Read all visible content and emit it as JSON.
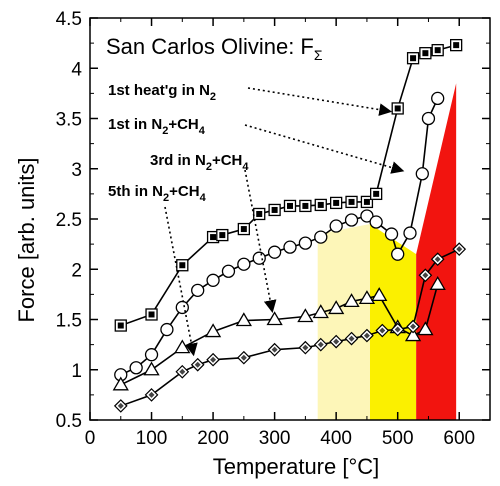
{
  "chart_data": {
    "type": "line",
    "title": "San Carlos Olivine: F",
    "title_subscript": "Σ",
    "xlabel": "Temperature [°C]",
    "ylabel": "Force [arb. units]",
    "xlim": [
      0,
      650
    ],
    "ylim": [
      0.5,
      4.5
    ],
    "xticks": [
      0,
      100,
      200,
      300,
      400,
      500,
      600
    ],
    "yticks": [
      0.5,
      1,
      1.5,
      2,
      2.5,
      3,
      3.5,
      4,
      4.5
    ],
    "grid": false,
    "series": [
      {
        "name": "1st heat'g in N₂",
        "marker": "square",
        "x": [
          50,
          100,
          150,
          200,
          215,
          250,
          275,
          300,
          325,
          350,
          375,
          400,
          425,
          450,
          465,
          500,
          525,
          545,
          565,
          595
        ],
        "y": [
          1.44,
          1.55,
          2.04,
          2.32,
          2.34,
          2.4,
          2.55,
          2.59,
          2.63,
          2.63,
          2.64,
          2.66,
          2.67,
          2.67,
          2.75,
          3.6,
          4.1,
          4.15,
          4.18,
          4.23
        ]
      },
      {
        "name": "1st in N₂+CH₄",
        "marker": "circle",
        "x": [
          50,
          75,
          100,
          125,
          150,
          175,
          200,
          225,
          250,
          275,
          300,
          325,
          350,
          375,
          400,
          425,
          450,
          465,
          490,
          500,
          520,
          540,
          550,
          565
        ],
        "y": [
          0.95,
          1.02,
          1.15,
          1.4,
          1.62,
          1.79,
          1.89,
          1.98,
          2.05,
          2.11,
          2.17,
          2.22,
          2.26,
          2.32,
          2.43,
          2.49,
          2.53,
          2.47,
          2.35,
          2.15,
          2.36,
          2.95,
          3.5,
          3.7
        ]
      },
      {
        "name": "3rd in N₂+CH₄",
        "marker": "triangle",
        "x": [
          50,
          100,
          150,
          200,
          250,
          300,
          350,
          375,
          400,
          425,
          450,
          470,
          500,
          525,
          545,
          565
        ],
        "y": [
          0.85,
          1.0,
          1.22,
          1.38,
          1.49,
          1.5,
          1.53,
          1.57,
          1.61,
          1.68,
          1.71,
          1.74,
          1.42,
          1.34,
          1.4,
          1.85
        ]
      },
      {
        "name": "5th in N₂+CH₄",
        "marker": "diamond",
        "x": [
          50,
          100,
          150,
          175,
          200,
          250,
          300,
          350,
          375,
          400,
          425,
          450,
          475,
          500,
          525,
          545,
          565,
          600
        ],
        "y": [
          0.64,
          0.75,
          0.98,
          1.05,
          1.1,
          1.12,
          1.2,
          1.22,
          1.25,
          1.28,
          1.31,
          1.34,
          1.39,
          1.4,
          1.43,
          1.94,
          2.1,
          2.2
        ]
      }
    ],
    "shaded_regions": [
      {
        "x_from": 370,
        "x_to": 455,
        "y_top_from": 2.35,
        "y_top_to": 2.45,
        "color": "#fdf6b8"
      },
      {
        "x_from": 455,
        "x_to": 530,
        "y_top_from": 2.45,
        "y_top_to": 2.15,
        "color": "#fbf000"
      },
      {
        "x_from": 530,
        "x_to": 595,
        "y_top_from": 2.15,
        "y_top_to": 3.85,
        "color": "#f2140f"
      }
    ],
    "annotations": [
      {
        "text": "1st heat'g in N",
        "sub": "2",
        "text_after": "",
        "arrow_to_series": 0
      },
      {
        "text": "1st in N",
        "sub": "2",
        "text_after": "+CH",
        "sub2": "4",
        "arrow_to_series": 1
      },
      {
        "text": "3rd in N",
        "sub": "2",
        "text_after": "+CH",
        "sub2": "4",
        "arrow_to_series": 2
      },
      {
        "text": "5th in N",
        "sub": "2",
        "text_after": "+CH",
        "sub2": "4",
        "arrow_to_series": 3
      }
    ],
    "colors": {
      "line": "#000000",
      "square_fill": "#000000",
      "diamond_fill": "#444444",
      "open_fill": "#ffffff"
    }
  }
}
